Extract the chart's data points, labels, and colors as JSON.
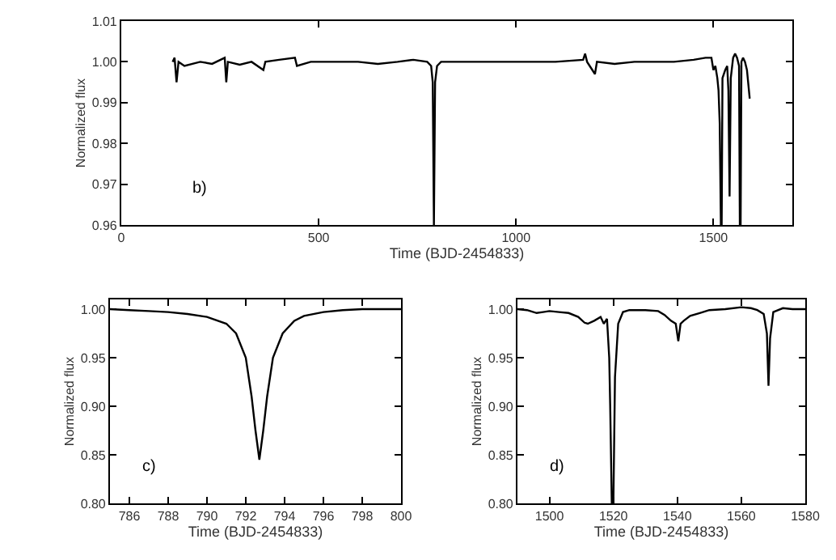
{
  "chart_data": [
    {
      "type": "line",
      "xlabel": "Time (BJD-2454833)",
      "ylabel": "Normalized flux",
      "annotations": [
        "b)"
      ],
      "color": "#000000",
      "xlim": [
        0,
        1700
      ],
      "xticks": [
        0,
        500,
        1000,
        1500
      ],
      "ylim": [
        0.96,
        1.01
      ],
      "yticks": [
        0.96,
        0.97,
        0.98,
        0.99,
        {
          "value": 1.0,
          "label": "1.00"
        },
        1.01
      ],
      "x": [
        130,
        135,
        140,
        145,
        160,
        200,
        230,
        262,
        266,
        270,
        300,
        330,
        360,
        365,
        400,
        440,
        445,
        480,
        550,
        600,
        650,
        700,
        740,
        775,
        785,
        789,
        792,
        795,
        800,
        810,
        900,
        1000,
        1100,
        1170,
        1175,
        1180,
        1200,
        1205,
        1250,
        1300,
        1350,
        1400,
        1450,
        1480,
        1495,
        1500,
        1505,
        1510,
        1513,
        1516,
        1519,
        1521,
        1523,
        1530,
        1535,
        1538,
        1541,
        1544,
        1550,
        1555,
        1560,
        1565,
        1567,
        1569,
        1571,
        1575,
        1580,
        1585,
        1590,
        1592
      ],
      "values": [
        1.0,
        1.001,
        0.995,
        1.0,
        0.999,
        1.0,
        0.9995,
        1.001,
        0.995,
        1.0,
        0.9993,
        1.0,
        0.998,
        1.0,
        1.0005,
        1.001,
        0.999,
        1.0,
        1.0,
        1.0,
        0.9995,
        1.0,
        1.0005,
        1.0,
        0.999,
        0.995,
        0.96,
        0.995,
        0.999,
        1.0,
        1.0,
        1.0,
        1.0,
        1.0005,
        1.002,
        1.0,
        0.997,
        1.0,
        0.9995,
        1.0,
        1.0,
        1.0,
        1.0005,
        1.001,
        1.001,
        0.998,
        0.999,
        0.996,
        0.993,
        0.985,
        0.96,
        0.96,
        0.996,
        0.998,
        0.999,
        0.993,
        0.967,
        0.996,
        1.001,
        1.002,
        1.001,
        0.999,
        0.96,
        0.96,
        1.0,
        1.001,
        1.0,
        0.998,
        0.993,
        0.991
      ]
    },
    {
      "type": "line",
      "xlabel": "Time (BJD-2454833)",
      "ylabel": "Normalized flux",
      "annotations": [
        "c)"
      ],
      "color": "#000000",
      "xlim": [
        785,
        800
      ],
      "xticks": [
        786,
        788,
        790,
        792,
        794,
        796,
        798,
        800
      ],
      "ylim": [
        0.8,
        1.01
      ],
      "yticks": [
        {
          "value": 0.8,
          "label": "0.80"
        },
        0.85,
        {
          "value": 0.9,
          "label": "0.90"
        },
        0.95,
        {
          "value": 1.0,
          "label": "1.00"
        }
      ],
      "x": [
        785,
        786,
        787,
        788,
        789,
        790,
        791,
        791.5,
        792,
        792.3,
        792.5,
        792.7,
        792.9,
        793.1,
        793.4,
        793.9,
        794.5,
        795,
        796,
        797,
        798,
        800
      ],
      "values": [
        1.0,
        0.999,
        0.998,
        0.997,
        0.995,
        0.992,
        0.985,
        0.975,
        0.95,
        0.91,
        0.875,
        0.845,
        0.875,
        0.91,
        0.95,
        0.975,
        0.988,
        0.993,
        0.997,
        0.999,
        1.0,
        1.0
      ]
    },
    {
      "type": "line",
      "xlabel": "Time (BJD-2454833)",
      "ylabel": "Normalized flux",
      "annotations": [
        "d)"
      ],
      "color": "#000000",
      "xlim": [
        1490,
        1580
      ],
      "xticks": [
        1500,
        1520,
        1540,
        1560,
        1580
      ],
      "ylim": [
        0.8,
        1.01
      ],
      "yticks": [
        {
          "value": 0.8,
          "label": "0.80"
        },
        0.85,
        {
          "value": 0.9,
          "label": "0.90"
        },
        0.95,
        {
          "value": 1.0,
          "label": "1.00"
        }
      ],
      "x": [
        1490,
        1493,
        1496,
        1498,
        1500,
        1503,
        1506,
        1509,
        1511,
        1512,
        1514,
        1516,
        1517,
        1518,
        1518.7,
        1519,
        1519.5,
        1520,
        1520.5,
        1521.5,
        1523,
        1525,
        1530,
        1534,
        1536,
        1538,
        1539.5,
        1540.3,
        1541,
        1542,
        1544,
        1547,
        1550,
        1555,
        1560,
        1563,
        1565,
        1567,
        1568,
        1568.5,
        1569,
        1570,
        1573,
        1576,
        1580
      ],
      "values": [
        1.0,
        0.999,
        0.996,
        0.997,
        0.998,
        0.997,
        0.996,
        0.992,
        0.986,
        0.985,
        0.988,
        0.992,
        0.985,
        0.99,
        0.95,
        0.9,
        0.8,
        0.8,
        0.93,
        0.985,
        0.997,
        0.999,
        0.999,
        0.998,
        0.994,
        0.988,
        0.985,
        0.967,
        0.985,
        0.988,
        0.993,
        0.996,
        0.999,
        1.0,
        1.002,
        1.001,
        0.999,
        0.995,
        0.975,
        0.921,
        0.97,
        0.997,
        1.001,
        1.0,
        1.0
      ]
    }
  ]
}
